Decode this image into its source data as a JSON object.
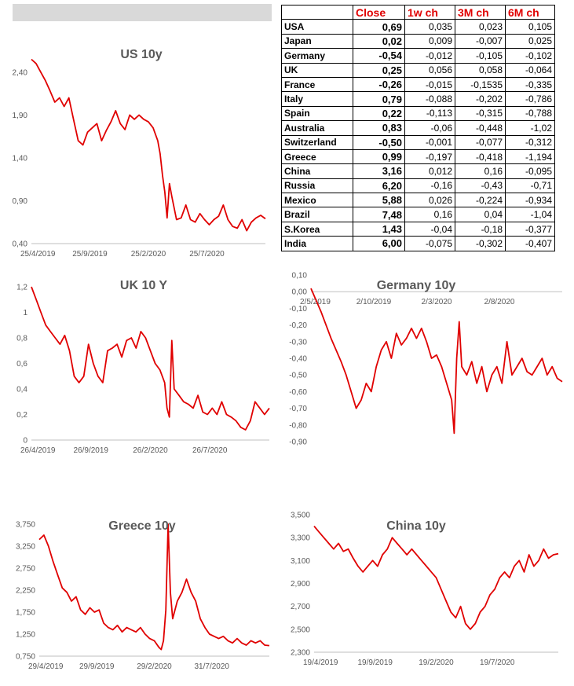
{
  "table": {
    "headers": [
      "",
      "Close",
      "1w ch",
      "3M ch",
      "6M ch"
    ],
    "rows": [
      {
        "country": "USA",
        "close": "0,69",
        "w1": "0,035",
        "m3": "0,023",
        "m6": "0,105"
      },
      {
        "country": "Japan",
        "close": "0,02",
        "w1": "0,009",
        "m3": "-0,007",
        "m6": "0,025"
      },
      {
        "country": "Germany",
        "close": "-0,54",
        "w1": "-0,012",
        "m3": "-0,105",
        "m6": "-0,102"
      },
      {
        "country": "UK",
        "close": "0,25",
        "w1": "0,056",
        "m3": "0,058",
        "m6": "-0,064"
      },
      {
        "country": "France",
        "close": "-0,26",
        "w1": "-0,015",
        "m3": "-0,1535",
        "m6": "-0,335"
      },
      {
        "country": "Italy",
        "close": "0,79",
        "w1": "-0,088",
        "m3": "-0,202",
        "m6": "-0,786"
      },
      {
        "country": "Spain",
        "close": "0,22",
        "w1": "-0,113",
        "m3": "-0,315",
        "m6": "-0,788"
      },
      {
        "country": "Australia",
        "close": "0,83",
        "w1": "-0,06",
        "m3": "-0,448",
        "m6": "-1,02"
      },
      {
        "country": "Switzerland",
        "close": "-0,50",
        "w1": "-0,001",
        "m3": "-0,077",
        "m6": "-0,312"
      },
      {
        "country": "Greece",
        "close": "0,99",
        "w1": "-0,197",
        "m3": "-0,418",
        "m6": "-1,194"
      },
      {
        "country": "China",
        "close": "3,16",
        "w1": "0,012",
        "m3": "0,16",
        "m6": "-0,095"
      },
      {
        "country": "Russia",
        "close": "6,20",
        "w1": "-0,16",
        "m3": "-0,43",
        "m6": "-0,71"
      },
      {
        "country": "Mexico",
        "close": "5,88",
        "w1": "0,026",
        "m3": "-0,224",
        "m6": "-0,934"
      },
      {
        "country": "Brazil",
        "close": "7,48",
        "w1": "0,16",
        "m3": "0,04",
        "m6": "-1,04"
      },
      {
        "country": "S.Korea",
        "close": "1,43",
        "w1": "-0,04",
        "m3": "-0,18",
        "m6": "-0,377"
      },
      {
        "country": "India",
        "close": "6,00",
        "w1": "-0,075",
        "m3": "-0,302",
        "m6": "-0,407"
      }
    ]
  },
  "colors": {
    "line": "#e00000",
    "header_text": "#e00000",
    "axis": "#bfbfbf",
    "topbar": "#d9d9d9"
  },
  "chart_data": [
    {
      "type": "line",
      "title": "US 10y",
      "ylim": [
        0.4,
        2.6
      ],
      "yticks": [
        0.4,
        0.9,
        1.4,
        1.9,
        2.4
      ],
      "yticklabels": [
        "0,40",
        "0,90",
        "1,40",
        "1,90",
        "2,40"
      ],
      "xticklabels": [
        "25/4/2019",
        "25/9/2019",
        "25/2/2020",
        "25/7/2020"
      ],
      "x": [
        0,
        0.02,
        0.04,
        0.06,
        0.08,
        0.1,
        0.12,
        0.14,
        0.16,
        0.18,
        0.2,
        0.22,
        0.24,
        0.26,
        0.28,
        0.3,
        0.32,
        0.34,
        0.36,
        0.38,
        0.4,
        0.42,
        0.44,
        0.46,
        0.48,
        0.5,
        0.52,
        0.54,
        0.55,
        0.56,
        0.57,
        0.58,
        0.59,
        0.6,
        0.62,
        0.64,
        0.66,
        0.68,
        0.7,
        0.72,
        0.74,
        0.76,
        0.78,
        0.8,
        0.82,
        0.84,
        0.86,
        0.88,
        0.9,
        0.92,
        0.94,
        0.96,
        0.98,
        1
      ],
      "y": [
        2.55,
        2.5,
        2.4,
        2.3,
        2.18,
        2.05,
        2.1,
        2.0,
        2.1,
        1.85,
        1.6,
        1.55,
        1.7,
        1.75,
        1.8,
        1.6,
        1.72,
        1.82,
        1.95,
        1.8,
        1.73,
        1.9,
        1.85,
        1.9,
        1.85,
        1.82,
        1.75,
        1.6,
        1.45,
        1.2,
        1.0,
        0.7,
        1.1,
        0.95,
        0.68,
        0.7,
        0.85,
        0.68,
        0.65,
        0.75,
        0.68,
        0.62,
        0.68,
        0.72,
        0.85,
        0.68,
        0.6,
        0.58,
        0.68,
        0.55,
        0.65,
        0.7,
        0.73,
        0.69
      ]
    },
    {
      "type": "line",
      "title": "UK 10 Y",
      "ylim": [
        0,
        1.2
      ],
      "yticks": [
        0,
        0.2,
        0.4,
        0.6,
        0.8,
        1.0,
        1.2
      ],
      "yticklabels": [
        "0",
        "0,2",
        "0,4",
        "0,6",
        "0,8",
        "1",
        "1,2"
      ],
      "xticklabels": [
        "26/4/2019",
        "26/9/2019",
        "26/2/2020",
        "26/7/2020"
      ],
      "x": [
        0,
        0.02,
        0.04,
        0.06,
        0.08,
        0.1,
        0.12,
        0.14,
        0.16,
        0.18,
        0.2,
        0.22,
        0.24,
        0.26,
        0.28,
        0.3,
        0.32,
        0.34,
        0.36,
        0.38,
        0.4,
        0.42,
        0.44,
        0.46,
        0.48,
        0.5,
        0.52,
        0.54,
        0.56,
        0.57,
        0.58,
        0.59,
        0.6,
        0.62,
        0.64,
        0.66,
        0.68,
        0.7,
        0.72,
        0.74,
        0.76,
        0.78,
        0.8,
        0.82,
        0.84,
        0.86,
        0.88,
        0.9,
        0.92,
        0.94,
        0.96,
        0.98,
        1
      ],
      "y": [
        1.2,
        1.1,
        1.0,
        0.9,
        0.85,
        0.8,
        0.75,
        0.82,
        0.7,
        0.5,
        0.45,
        0.5,
        0.75,
        0.6,
        0.5,
        0.45,
        0.7,
        0.72,
        0.75,
        0.65,
        0.78,
        0.8,
        0.72,
        0.85,
        0.8,
        0.7,
        0.6,
        0.55,
        0.45,
        0.25,
        0.18,
        0.78,
        0.4,
        0.35,
        0.3,
        0.28,
        0.25,
        0.35,
        0.22,
        0.2,
        0.25,
        0.2,
        0.3,
        0.2,
        0.18,
        0.15,
        0.1,
        0.08,
        0.15,
        0.3,
        0.25,
        0.2,
        0.25
      ]
    },
    {
      "type": "line",
      "title": "Germany 10y",
      "ylim": [
        -0.9,
        0.1
      ],
      "yticks": [
        0.1,
        0.0,
        -0.1,
        -0.2,
        -0.3,
        -0.4,
        -0.5,
        -0.6,
        -0.7,
        -0.8,
        -0.9
      ],
      "yticklabels": [
        "0,10",
        "0,00",
        "-0,10",
        "-0,20",
        "-0,30",
        "-0,40",
        "-0,50",
        "-0,60",
        "-0,70",
        "-0,80",
        "-0,90"
      ],
      "xticklabels": [
        "2/5/2019",
        "2/10/2019",
        "2/3/2020",
        "2/8/2020"
      ],
      "x": [
        0,
        0.02,
        0.04,
        0.06,
        0.08,
        0.1,
        0.12,
        0.14,
        0.16,
        0.18,
        0.2,
        0.22,
        0.24,
        0.26,
        0.28,
        0.3,
        0.32,
        0.34,
        0.36,
        0.38,
        0.4,
        0.42,
        0.44,
        0.46,
        0.48,
        0.5,
        0.52,
        0.54,
        0.56,
        0.57,
        0.58,
        0.59,
        0.6,
        0.62,
        0.64,
        0.66,
        0.68,
        0.7,
        0.72,
        0.74,
        0.76,
        0.78,
        0.8,
        0.82,
        0.84,
        0.86,
        0.88,
        0.9,
        0.92,
        0.94,
        0.96,
        0.98,
        1
      ],
      "y": [
        0.02,
        -0.05,
        -0.12,
        -0.2,
        -0.28,
        -0.35,
        -0.42,
        -0.5,
        -0.6,
        -0.7,
        -0.65,
        -0.55,
        -0.6,
        -0.45,
        -0.35,
        -0.3,
        -0.4,
        -0.25,
        -0.32,
        -0.28,
        -0.22,
        -0.28,
        -0.22,
        -0.3,
        -0.4,
        -0.38,
        -0.45,
        -0.55,
        -0.65,
        -0.85,
        -0.4,
        -0.18,
        -0.45,
        -0.5,
        -0.42,
        -0.55,
        -0.45,
        -0.6,
        -0.5,
        -0.45,
        -0.55,
        -0.3,
        -0.5,
        -0.45,
        -0.4,
        -0.48,
        -0.5,
        -0.45,
        -0.4,
        -0.5,
        -0.45,
        -0.52,
        -0.54
      ]
    },
    {
      "type": "line",
      "title": "Greece 10y",
      "ylim": [
        0.75,
        3.75
      ],
      "yticks": [
        0.75,
        1.25,
        1.75,
        2.25,
        2.75,
        3.25,
        3.75
      ],
      "yticklabels": [
        "0,750",
        "1,250",
        "1,750",
        "2,250",
        "2,750",
        "3,250",
        "3,750"
      ],
      "xticklabels": [
        "29/4/2019",
        "29/9/2019",
        "29/2/2020",
        "31/7/2020"
      ],
      "x": [
        0,
        0.02,
        0.04,
        0.06,
        0.08,
        0.1,
        0.12,
        0.14,
        0.16,
        0.18,
        0.2,
        0.22,
        0.24,
        0.26,
        0.28,
        0.3,
        0.32,
        0.34,
        0.36,
        0.38,
        0.4,
        0.42,
        0.44,
        0.46,
        0.48,
        0.5,
        0.52,
        0.53,
        0.54,
        0.55,
        0.56,
        0.57,
        0.58,
        0.6,
        0.62,
        0.64,
        0.66,
        0.68,
        0.7,
        0.72,
        0.74,
        0.76,
        0.78,
        0.8,
        0.82,
        0.84,
        0.86,
        0.88,
        0.9,
        0.92,
        0.94,
        0.96,
        0.98,
        1
      ],
      "y": [
        3.4,
        3.5,
        3.25,
        2.9,
        2.6,
        2.3,
        2.2,
        2.0,
        2.1,
        1.8,
        1.7,
        1.85,
        1.75,
        1.8,
        1.5,
        1.4,
        1.35,
        1.45,
        1.3,
        1.4,
        1.35,
        1.3,
        1.4,
        1.25,
        1.15,
        1.1,
        0.95,
        0.9,
        1.1,
        1.8,
        3.75,
        2.2,
        1.6,
        2.0,
        2.2,
        2.5,
        2.2,
        2.0,
        1.6,
        1.4,
        1.25,
        1.2,
        1.15,
        1.2,
        1.1,
        1.05,
        1.15,
        1.05,
        1.0,
        1.1,
        1.05,
        1.1,
        1.0,
        0.99
      ]
    },
    {
      "type": "line",
      "title": "China 10y",
      "ylim": [
        2.3,
        3.5
      ],
      "yticks": [
        2.3,
        2.5,
        2.7,
        2.9,
        3.1,
        3.3,
        3.5
      ],
      "yticklabels": [
        "2,300",
        "2,500",
        "2,700",
        "2,900",
        "3,100",
        "3,300",
        "3,500"
      ],
      "xticklabels": [
        "19/4/2019",
        "19/9/2019",
        "19/2/2020",
        "19/7/2020"
      ],
      "x": [
        0,
        0.02,
        0.04,
        0.06,
        0.08,
        0.1,
        0.12,
        0.14,
        0.16,
        0.18,
        0.2,
        0.22,
        0.24,
        0.26,
        0.28,
        0.3,
        0.32,
        0.34,
        0.36,
        0.38,
        0.4,
        0.42,
        0.44,
        0.46,
        0.48,
        0.5,
        0.52,
        0.54,
        0.56,
        0.58,
        0.6,
        0.62,
        0.64,
        0.66,
        0.68,
        0.7,
        0.72,
        0.74,
        0.76,
        0.78,
        0.8,
        0.82,
        0.84,
        0.86,
        0.88,
        0.9,
        0.92,
        0.94,
        0.96,
        0.98,
        1
      ],
      "y": [
        3.4,
        3.35,
        3.3,
        3.25,
        3.2,
        3.25,
        3.18,
        3.2,
        3.12,
        3.05,
        3.0,
        3.05,
        3.1,
        3.05,
        3.15,
        3.2,
        3.3,
        3.25,
        3.2,
        3.15,
        3.2,
        3.15,
        3.1,
        3.05,
        3.0,
        2.95,
        2.85,
        2.75,
        2.65,
        2.6,
        2.7,
        2.55,
        2.5,
        2.55,
        2.65,
        2.7,
        2.8,
        2.85,
        2.95,
        3.0,
        2.95,
        3.05,
        3.1,
        3.0,
        3.15,
        3.05,
        3.1,
        3.2,
        3.12,
        3.15,
        3.16
      ]
    }
  ]
}
